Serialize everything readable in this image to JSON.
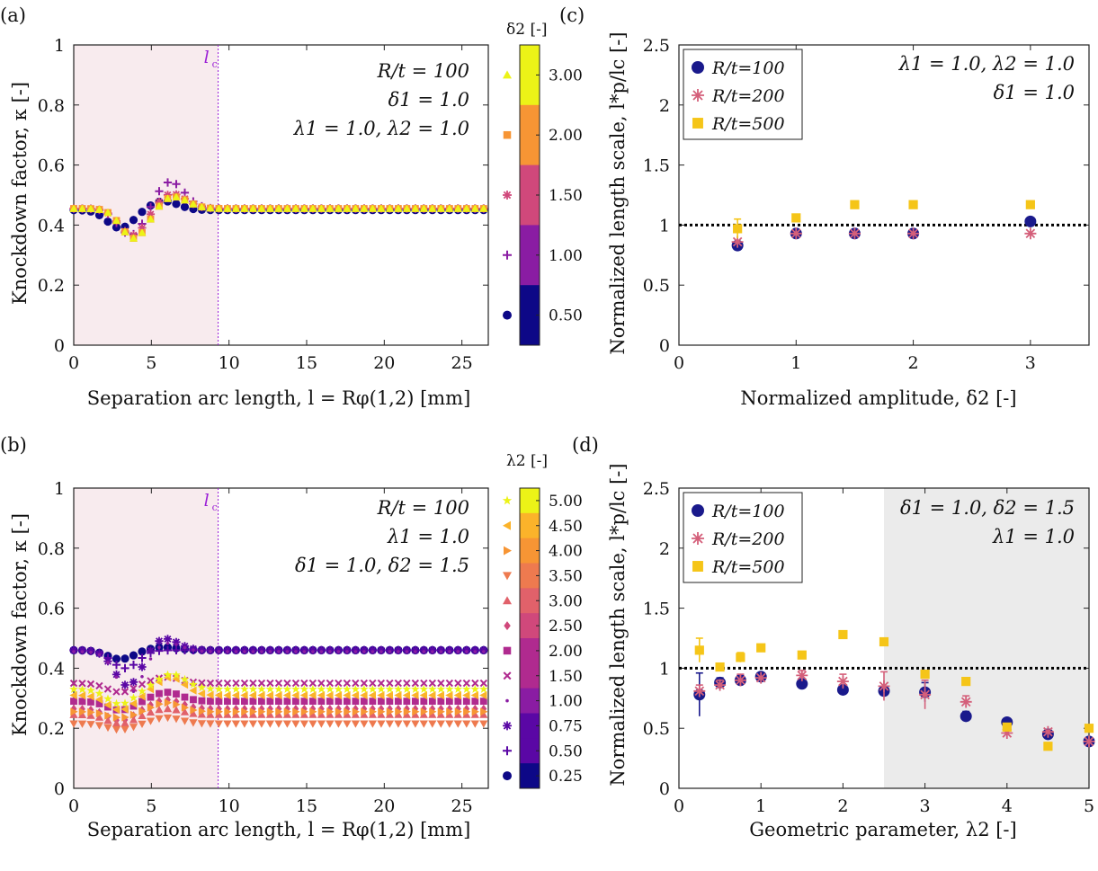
{
  "palette": {
    "c1": "#0d0887",
    "c2": "#5a07a5",
    "c3": "#8a1ca3",
    "c4": "#b02a8f",
    "c5": "#d0487b",
    "c6": "#e1616a",
    "c7": "#ee7a4f",
    "c8": "#f79534",
    "c9": "#fbb32a",
    "c10": "#f6d423",
    "c11": "#ecf317",
    "rt100": "#1a1a8c",
    "rt200": "#d45f7a",
    "rt500": "#f5c518",
    "shadeA": "#f8ebee",
    "shadeD": "#ebebeb",
    "lc": "#9b1fd6"
  },
  "chart_data": [
    {
      "id": "a",
      "panel_label": "(a)",
      "type": "scatter",
      "xlabel": "Separation arc length, l = Rφ(1,2) [mm]",
      "ylabel": "Knockdown factor, κ [-]",
      "xlim": [
        0,
        26.7
      ],
      "ylim": [
        0,
        1
      ],
      "xticks": [
        "0",
        "5",
        "10",
        "15",
        "20",
        "25"
      ],
      "yticks": [
        "0",
        "0.2",
        "0.4",
        "0.6",
        "0.8",
        "1"
      ],
      "lc_value": 9.3,
      "lc_label": "l",
      "annotations": [
        "R/t = 100",
        "δ1 = 1.0",
        "λ1 = 1.0, λ2 = 1.0"
      ],
      "colorbar": {
        "title": "δ2 [-]",
        "labels": [
          "3.00",
          "2.00",
          "1.50",
          "1.00",
          "0.50"
        ],
        "markers": [
          "triangle",
          "square",
          "star",
          "plus",
          "circle"
        ]
      },
      "series": [
        {
          "name": "0.50",
          "marker": "circle",
          "base": 0.45,
          "dip": 0.06,
          "peak": 0.03,
          "dipx": 3.0,
          "peakx": 5.8
        },
        {
          "name": "1.00",
          "marker": "plus",
          "base": 0.455,
          "dip": 0.09,
          "peak": 0.09,
          "dipx": 3.7,
          "peakx": 6.2
        },
        {
          "name": "1.50",
          "marker": "star",
          "base": 0.455,
          "dip": 0.09,
          "peak": 0.05,
          "dipx": 3.8,
          "peakx": 6.3
        },
        {
          "name": "2.00",
          "marker": "square",
          "base": 0.455,
          "dip": 0.1,
          "peak": 0.04,
          "dipx": 3.9,
          "peakx": 6.4
        },
        {
          "name": "3.00",
          "marker": "triangle",
          "base": 0.455,
          "dip": 0.1,
          "peak": 0.04,
          "dipx": 3.9,
          "peakx": 6.4
        }
      ]
    },
    {
      "id": "b",
      "panel_label": "(b)",
      "type": "scatter",
      "xlabel": "Separation arc length, l = Rφ(1,2) [mm]",
      "ylabel": "Knockdown factor, κ [-]",
      "xlim": [
        0,
        26.7
      ],
      "ylim": [
        0,
        1
      ],
      "xticks": [
        "0",
        "5",
        "10",
        "15",
        "20",
        "25"
      ],
      "yticks": [
        "0",
        "0.2",
        "0.4",
        "0.6",
        "0.8",
        "1"
      ],
      "lc_value": 9.3,
      "lc_label": "l",
      "annotations": [
        "R/t = 100",
        "λ1 = 1.0",
        "δ1 = 1.0, δ2 = 1.5"
      ],
      "colorbar": {
        "title": "λ2 [-]",
        "labels": [
          "5.00",
          "4.50",
          "4.00",
          "3.50",
          "3.00",
          "2.50",
          "2.00",
          "1.50",
          "1.00",
          "0.75",
          "0.50",
          "0.25"
        ],
        "markers": [
          "pentagram",
          "tri-left",
          "tri-right",
          "tri-down",
          "triangle",
          "diamond",
          "square",
          "cross",
          "dot",
          "star",
          "plus",
          "circle"
        ]
      },
      "series": [
        {
          "name": "0.25",
          "marker": "circle",
          "base": 0.46,
          "dip": 0.03,
          "peak": 0.01,
          "dipx": 3.0,
          "peakx": 5.8
        },
        {
          "name": "0.50",
          "marker": "plus",
          "base": 0.46,
          "dip": 0.06,
          "peak": 0.0,
          "dipx": 3.3,
          "peakx": 6.0
        },
        {
          "name": "0.75",
          "marker": "star",
          "base": 0.46,
          "dip": 0.12,
          "peak": 0.04,
          "dipx": 3.5,
          "peakx": 5.8
        },
        {
          "name": "1.00",
          "marker": "dot",
          "base": 0.455,
          "dip": 0.14,
          "peak": 0.03,
          "dipx": 3.6,
          "peakx": 6.0
        },
        {
          "name": "1.50",
          "marker": "cross",
          "base": 0.35,
          "dip": 0.03,
          "peak": 0.02,
          "dipx": 3.0,
          "peakx": 6.0
        },
        {
          "name": "2.00",
          "marker": "square",
          "base": 0.29,
          "dip": 0.03,
          "peak": 0.03,
          "dipx": 3.0,
          "peakx": 6.0
        },
        {
          "name": "2.50",
          "marker": "diamond",
          "base": 0.265,
          "dip": 0.04,
          "peak": 0.03,
          "dipx": 3.0,
          "peakx": 6.0
        },
        {
          "name": "3.00",
          "marker": "triangle",
          "base": 0.245,
          "dip": 0.03,
          "peak": 0.02,
          "dipx": 3.0,
          "peakx": 6.0
        },
        {
          "name": "3.50",
          "marker": "tri-down",
          "base": 0.215,
          "dip": 0.02,
          "peak": 0.02,
          "dipx": 3.0,
          "peakx": 6.0
        },
        {
          "name": "4.00",
          "marker": "tri-right",
          "base": 0.255,
          "dip": 0.02,
          "peak": 0.03,
          "dipx": 3.0,
          "peakx": 6.0
        },
        {
          "name": "4.50",
          "marker": "tri-left",
          "base": 0.31,
          "dip": 0.05,
          "peak": 0.06,
          "dipx": 3.0,
          "peakx": 6.2
        },
        {
          "name": "5.00",
          "marker": "pentagram",
          "base": 0.33,
          "dip": 0.05,
          "peak": 0.05,
          "dipx": 3.0,
          "peakx": 6.3
        }
      ]
    },
    {
      "id": "c",
      "panel_label": "(c)",
      "type": "scatter",
      "xlabel": "Normalized amplitude, δ2 [-]",
      "ylabel": "Normalized length scale, l*p/lc [-]",
      "xlim": [
        0,
        3.5
      ],
      "ylim": [
        0,
        2.5
      ],
      "xticks": [
        "0",
        "1",
        "2",
        "3"
      ],
      "yticks": [
        "0",
        "0.5",
        "1",
        "1.5",
        "2",
        "2.5"
      ],
      "reference_line": 1.0,
      "legend": [
        "R/t=100",
        "R/t=200",
        "R/t=500"
      ],
      "annotations": [
        "λ1 = 1.0, λ2 = 1.0",
        "δ1 = 1.0"
      ],
      "series": [
        {
          "name": "R/t=100",
          "marker": "circle",
          "x": [
            0.5,
            1.0,
            1.5,
            2.0,
            3.0
          ],
          "y": [
            0.83,
            0.93,
            0.93,
            0.93,
            1.03
          ]
        },
        {
          "name": "R/t=200",
          "marker": "star",
          "x": [
            0.5,
            1.0,
            1.5,
            2.0,
            3.0
          ],
          "y": [
            0.86,
            0.93,
            0.93,
            0.93,
            0.93
          ]
        },
        {
          "name": "R/t=500",
          "marker": "square",
          "x": [
            0.5,
            1.0,
            1.5,
            2.0,
            3.0
          ],
          "y": [
            0.97,
            1.06,
            1.17,
            1.17,
            1.17
          ],
          "err": [
            0.08,
            0,
            0,
            0,
            0
          ]
        }
      ]
    },
    {
      "id": "d",
      "panel_label": "(d)",
      "type": "scatter",
      "xlabel": "Geometric parameter, λ2 [-]",
      "ylabel": "Normalized length scale, l*p/lc [-]",
      "xlim": [
        0,
        5
      ],
      "ylim": [
        0,
        2.5
      ],
      "xticks": [
        "0",
        "1",
        "2",
        "3",
        "4",
        "5"
      ],
      "yticks": [
        "0",
        "0.5",
        "1",
        "1.5",
        "2",
        "2.5"
      ],
      "reference_line": 1.0,
      "shaded_from": 2.5,
      "legend": [
        "R/t=100",
        "R/t=200",
        "R/t=500"
      ],
      "annotations": [
        "δ1 = 1.0, δ2 = 1.5",
        "λ1 = 1.0"
      ],
      "series": [
        {
          "name": "R/t=100",
          "marker": "circle",
          "x": [
            0.25,
            0.5,
            0.75,
            1.0,
            1.5,
            2.0,
            2.5,
            3.0,
            3.5,
            4.0,
            4.5,
            5.0
          ],
          "y": [
            0.78,
            0.88,
            0.9,
            0.93,
            0.87,
            0.82,
            0.81,
            0.8,
            0.6,
            0.55,
            0.45,
            0.39
          ],
          "err": [
            0.18,
            0.04,
            0.04,
            0,
            0,
            0,
            0.04,
            0.08,
            0.04,
            0.03,
            0,
            0
          ]
        },
        {
          "name": "R/t=200",
          "marker": "star",
          "x": [
            0.25,
            0.5,
            0.75,
            1.0,
            1.5,
            2.0,
            2.5,
            3.0,
            3.5,
            4.0,
            4.5,
            5.0
          ],
          "y": [
            0.81,
            0.86,
            0.9,
            0.92,
            0.94,
            0.89,
            0.85,
            0.78,
            0.72,
            0.46,
            0.47,
            0.39
          ],
          "err": [
            0.05,
            0.04,
            0.05,
            0,
            0.04,
            0.06,
            0.12,
            0.12,
            0.05,
            0,
            0,
            0
          ]
        },
        {
          "name": "R/t=500",
          "marker": "square",
          "x": [
            0.25,
            0.5,
            0.75,
            1.0,
            1.5,
            2.0,
            2.5,
            3.0,
            3.5,
            4.0,
            4.5,
            5.0
          ],
          "y": [
            1.15,
            1.01,
            1.09,
            1.17,
            1.11,
            1.28,
            1.22,
            0.95,
            0.89,
            0.51,
            0.35,
            0.5
          ],
          "err": [
            0.1,
            0,
            0.04,
            0,
            0,
            0,
            0,
            0,
            0,
            0,
            0,
            0
          ]
        }
      ]
    }
  ]
}
